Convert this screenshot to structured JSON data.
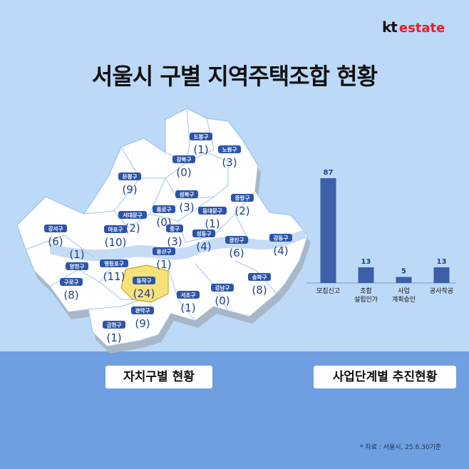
{
  "brand": {
    "kt": "kt",
    "estate": "estate"
  },
  "title": "서울시 구별 지역주택조합 현황",
  "section_labels": {
    "map": "자치구별 현황",
    "chart": "사업단계별 추진현황"
  },
  "source": "* 자료 : 서울시, 25.6.30기준",
  "districts": [
    {
      "name": "도봉구",
      "count": "(1)"
    },
    {
      "name": "노원구",
      "count": "(3)"
    },
    {
      "name": "강북구",
      "count": "(0)"
    },
    {
      "name": "은평구",
      "count": "(9)"
    },
    {
      "name": "성북구",
      "count": "(3)"
    },
    {
      "name": "중랑구",
      "count": "(2)"
    },
    {
      "name": "종로구",
      "count": "(0)"
    },
    {
      "name": "서대문구",
      "count": "(2)"
    },
    {
      "name": "동대문구",
      "count": "(1)"
    },
    {
      "name": "중구",
      "count": "(3)"
    },
    {
      "name": "강서구",
      "count": "(6)"
    },
    {
      "name": "마포구",
      "count": "(10)"
    },
    {
      "name": "성동구",
      "count": "(4)"
    },
    {
      "name": "광진구",
      "count": "(6)"
    },
    {
      "name": "강동구",
      "count": "(4)"
    },
    {
      "name": "",
      "count": "(1)"
    },
    {
      "name": "용산구",
      "count": "(1)"
    },
    {
      "name": "양천구",
      "count": ""
    },
    {
      "name": "영등포구",
      "count": "(11)"
    },
    {
      "name": "동작구",
      "count": "(24)"
    },
    {
      "name": "송파구",
      "count": "(8)"
    },
    {
      "name": "구로구",
      "count": "(8)"
    },
    {
      "name": "강남구",
      "count": "(0)"
    },
    {
      "name": "서초구",
      "count": "(1)"
    },
    {
      "name": "관악구",
      "count": "(9)"
    },
    {
      "name": "금천구",
      "count": "(1)"
    }
  ],
  "colors": {
    "bar": "#3c5fa8",
    "highlight": "#f7e27a",
    "map_fill": "#ffffff",
    "bottom": "#6f9fe0"
  },
  "chart_data": {
    "type": "bar",
    "categories": [
      "모집신고",
      "조합\n설립인가",
      "사업\n계획승인",
      "공사착공"
    ],
    "values": [
      87,
      13,
      5,
      13
    ],
    "ylim": [
      0,
      87
    ]
  }
}
